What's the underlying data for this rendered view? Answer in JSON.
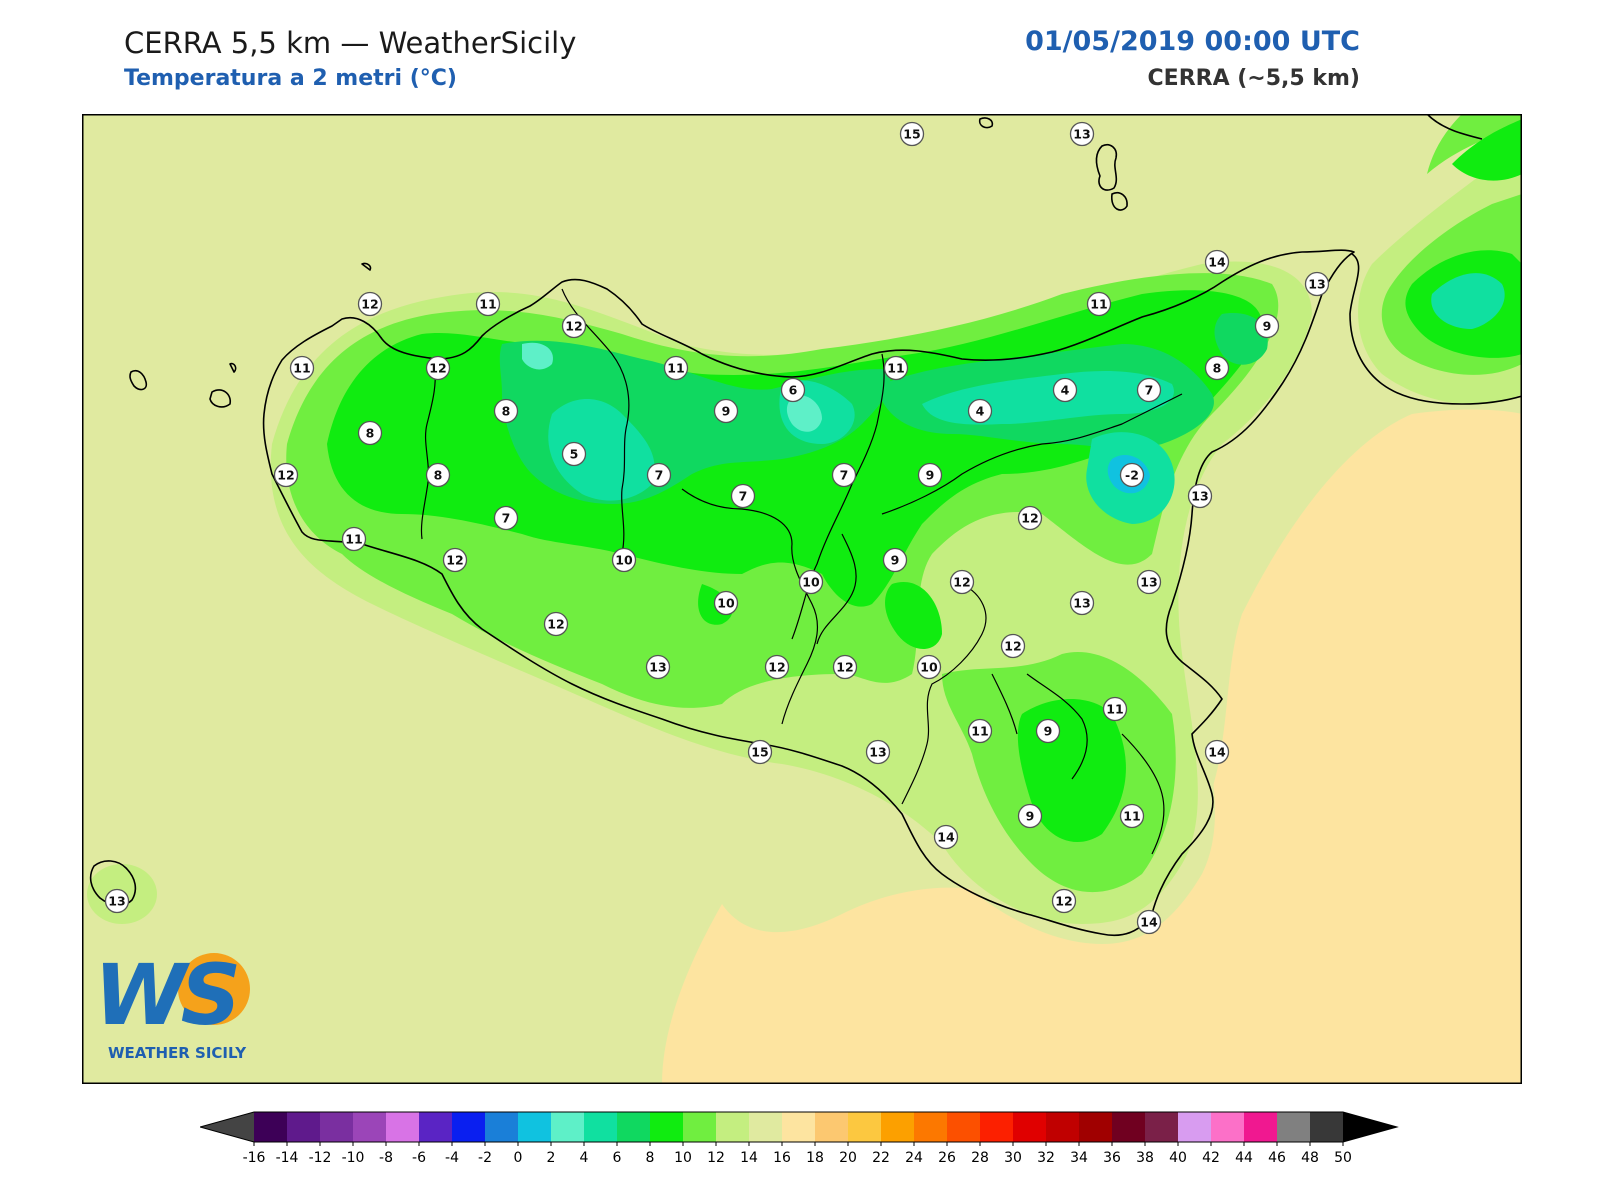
{
  "header": {
    "title": "CERRA 5,5 km — WeatherSicily",
    "subtitle": "Temperatura a 2 metri (°C)",
    "datetime": "01/05/2019 00:00 UTC",
    "model": "CERRA (~5,5 km)"
  },
  "logo": {
    "letters": "WS",
    "name": "WEATHER SICILY"
  },
  "colors": {
    "background_field": "#e0eaa0",
    "warm_field": "#fde4a0",
    "coastline": "#000000"
  },
  "colorbar": {
    "ticks": [
      "-16",
      "-14",
      "-12",
      "-10",
      "-8",
      "-6",
      "-4",
      "-2",
      "0",
      "2",
      "4",
      "6",
      "8",
      "10",
      "12",
      "14",
      "16",
      "18",
      "20",
      "22",
      "24",
      "26",
      "28",
      "30",
      "32",
      "34",
      "36",
      "38",
      "40",
      "42",
      "44",
      "46",
      "48",
      "50"
    ],
    "colors": [
      "#3d0057",
      "#5f1a8c",
      "#7a2fa0",
      "#9b45b8",
      "#d873e6",
      "#5a24c4",
      "#0a1ff0",
      "#1a7fd8",
      "#10c2e0",
      "#5ef0c8",
      "#10e0a0",
      "#10d860",
      "#10ec10",
      "#70ee40",
      "#c4ee80",
      "#e0eaa0",
      "#fde4a0",
      "#fcc870",
      "#fcc840",
      "#fca000",
      "#fc7800",
      "#fc5000",
      "#fc2000",
      "#e00000",
      "#c00000",
      "#a00000",
      "#700020",
      "#7a2048",
      "#d89cf0",
      "#fc70c8",
      "#f01890",
      "#808080",
      "#383838"
    ],
    "under_color": "#444444",
    "over_color": "#000000"
  },
  "station_values": [
    {
      "value": "15"
    },
    {
      "value": "13"
    },
    {
      "value": "14"
    },
    {
      "value": "13"
    },
    {
      "value": "12"
    },
    {
      "value": "11"
    },
    {
      "value": "12"
    },
    {
      "value": "11"
    },
    {
      "value": "12"
    },
    {
      "value": "11"
    },
    {
      "value": "11"
    },
    {
      "value": "11"
    },
    {
      "value": "9"
    },
    {
      "value": "8"
    },
    {
      "value": "6"
    },
    {
      "value": "4"
    },
    {
      "value": "7"
    },
    {
      "value": "4"
    },
    {
      "value": "8"
    },
    {
      "value": "9"
    },
    {
      "value": "8"
    },
    {
      "value": "5"
    },
    {
      "value": "7"
    },
    {
      "value": "7"
    },
    {
      "value": "9"
    },
    {
      "value": "12"
    },
    {
      "value": "8"
    },
    {
      "value": "-2"
    },
    {
      "value": "13"
    },
    {
      "value": "7"
    },
    {
      "value": "7"
    },
    {
      "value": "12"
    },
    {
      "value": "11"
    },
    {
      "value": "12"
    },
    {
      "value": "10"
    },
    {
      "value": "9"
    },
    {
      "value": "12"
    },
    {
      "value": "13"
    },
    {
      "value": "13"
    },
    {
      "value": "10"
    },
    {
      "value": "10"
    },
    {
      "value": "12"
    },
    {
      "value": "12"
    },
    {
      "value": "12"
    },
    {
      "value": "13"
    },
    {
      "value": "12"
    },
    {
      "value": "10"
    },
    {
      "value": "11"
    },
    {
      "value": "9"
    },
    {
      "value": "11"
    },
    {
      "value": "14"
    },
    {
      "value": "15"
    },
    {
      "value": "13"
    },
    {
      "value": "9"
    },
    {
      "value": "11"
    },
    {
      "value": "14"
    },
    {
      "value": "12"
    },
    {
      "value": "14"
    },
    {
      "value": "13"
    }
  ]
}
